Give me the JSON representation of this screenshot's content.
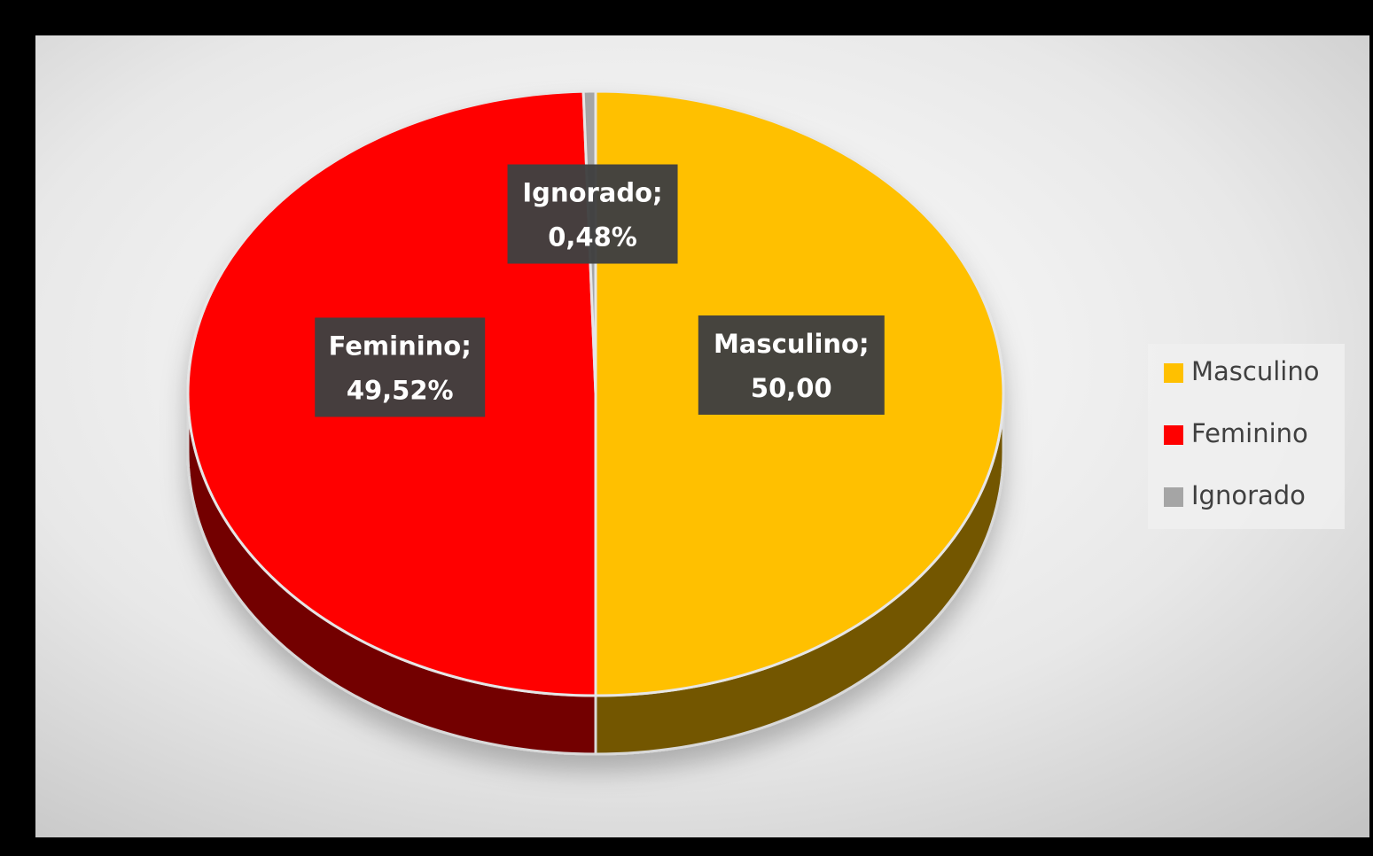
{
  "chart_data": {
    "type": "pie",
    "categories": [
      "Masculino",
      "Feminino",
      "Ignorado"
    ],
    "values": [
      50,
      49.52,
      0.48
    ],
    "value_labels": [
      "Masculino; 50,00",
      "Feminino; 49,52%",
      "Ignorado; 0,48%"
    ],
    "colors": [
      "#ffc000",
      "#ff0000",
      "#a5a5a5"
    ],
    "legend": "right"
  }
}
